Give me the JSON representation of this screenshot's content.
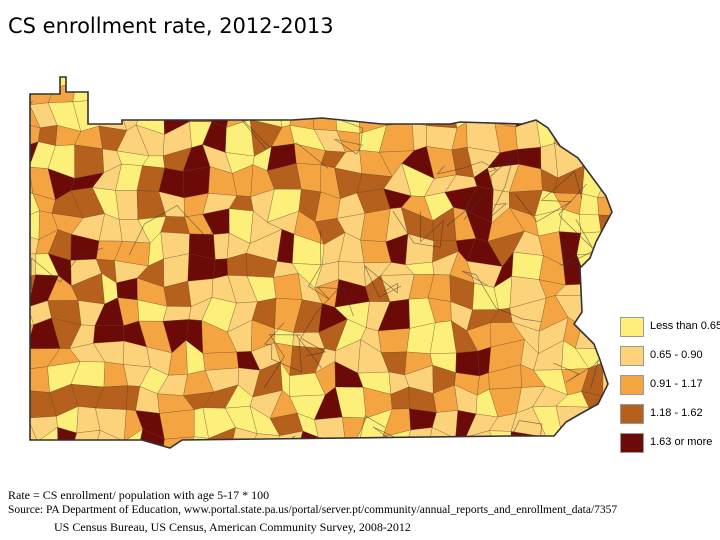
{
  "title": "CS enrollment rate, 2012-2013",
  "map": {
    "region": "Pennsylvania",
    "unit": "school districts",
    "colors": {
      "outline": "#333333",
      "boundary": "#5a3a1a"
    }
  },
  "legend": {
    "items": [
      {
        "label": "Less than 0.65",
        "color": "#fdf07a"
      },
      {
        "label": "0.65 - 0.90",
        "color": "#fcd27a"
      },
      {
        "label": "0.91 - 1.17",
        "color": "#f5a442"
      },
      {
        "label": "1.18 - 1.62",
        "color": "#b5601c"
      },
      {
        "label": "1.63 or more",
        "color": "#6b0a07"
      }
    ]
  },
  "footer": {
    "rate_note": "Rate = CS enrollment/ population with age 5-17 * 100",
    "source_line1": "Source: PA Department of Education, www.portal.state.pa.us/portal/server.pt/community/annual_reports_and_enrollment_data/7357",
    "source_line2": "US Census Bureau, US Census, American Community Survey, 2008-2012"
  }
}
